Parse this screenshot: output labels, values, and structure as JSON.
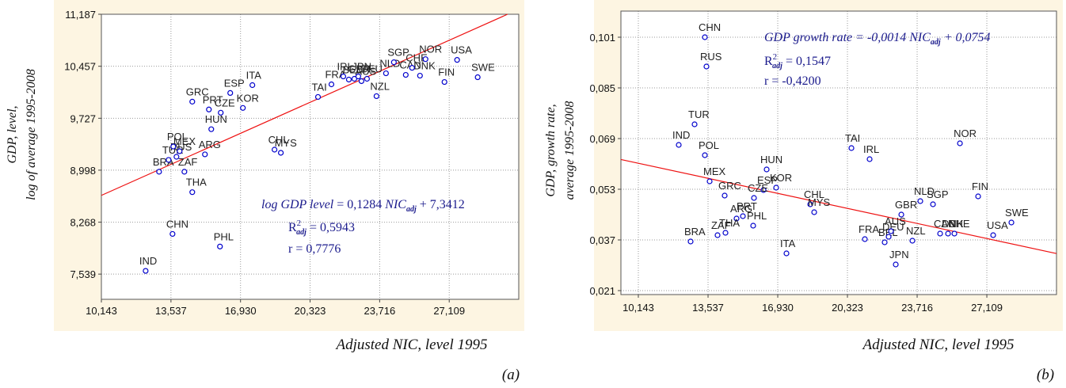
{
  "chart_data": [
    {
      "type": "scatter",
      "panel_label": "(a)",
      "x_label": "Adjusted NIC, level 1995",
      "y_label": [
        "GDP, level,",
        "log of average 1995-2008"
      ],
      "color": "#0000cc",
      "grid": true,
      "xlim": [
        10143,
        30500
      ],
      "ylim": [
        7.185,
        11.187
      ],
      "xticks": [
        {
          "value": 10143,
          "label": "10,143"
        },
        {
          "value": 13537,
          "label": "13,537"
        },
        {
          "value": 16930,
          "label": "16,930"
        },
        {
          "value": 20323,
          "label": "20,323"
        },
        {
          "value": 23716,
          "label": "23,716"
        },
        {
          "value": 27109,
          "label": "27,109"
        }
      ],
      "yticks": [
        {
          "value": 7.539,
          "label": "7,539"
        },
        {
          "value": 8.268,
          "label": "8,268"
        },
        {
          "value": 8.998,
          "label": "8,998"
        },
        {
          "value": 9.727,
          "label": "9,727"
        },
        {
          "value": 10.457,
          "label": "10,457"
        },
        {
          "value": 11.187,
          "label": "11,187"
        }
      ],
      "point_labels": [
        "IND",
        "CHN",
        "PHL",
        "BRA",
        "THA",
        "ZAF",
        "ARG",
        "TUR",
        "RUS",
        "MEX",
        "POL",
        "HUN",
        "GRC",
        "PRT",
        "CZE",
        "KOR",
        "ESP",
        "ITA",
        "CHL",
        "MYS",
        "TAI",
        "FRA",
        "IRL",
        "BEL",
        "GBR",
        "AUS",
        "JPN",
        "DEU",
        "NZL",
        "NLD",
        "CAN",
        "DNK",
        "CHE",
        "SGP",
        "NOR",
        "USA",
        "FIN",
        "SWE"
      ],
      "x": [
        12302,
        13613,
        15927,
        12958,
        14577,
        14192,
        15194,
        13421,
        13806,
        13960,
        13652,
        15503,
        14577,
        15387,
        15965,
        17045,
        16428,
        17508,
        18588,
        18896,
        20709,
        21364,
        21943,
        22213,
        22482,
        22829,
        22675,
        23099,
        23562,
        24025,
        24989,
        25683,
        25297,
        24410,
        25952,
        27494,
        26877,
        28497
      ],
      "y": [
        7.584,
        8.103,
        7.926,
        8.976,
        8.689,
        8.976,
        9.22,
        9.142,
        9.186,
        9.264,
        9.33,
        9.573,
        9.96,
        9.85,
        9.805,
        9.872,
        10.082,
        10.192,
        9.286,
        9.242,
        10.026,
        10.203,
        10.314,
        10.27,
        10.281,
        10.248,
        10.314,
        10.281,
        10.037,
        10.358,
        10.336,
        10.325,
        10.435,
        10.513,
        10.557,
        10.546,
        10.236,
        10.303
      ],
      "trend": {
        "color": "#ee1111",
        "x": [
          10143,
          29953
        ],
        "y": [
          8.644,
          11.187
        ]
      },
      "annotation": [
        [
          {
            "text": "log GDP level",
            "style": "italic"
          },
          {
            "text": " = 0,1284 ",
            "style": "plain"
          },
          {
            "text": "NIC",
            "style": "italic"
          },
          {
            "text": "adj",
            "style": "sub"
          },
          {
            "text": " + 7,3412",
            "style": "plain"
          }
        ],
        [
          {
            "text": "R",
            "style": "plain"
          },
          {
            "text": "2",
            "style": "sup"
          },
          {
            "text": "adj",
            "style": "sub"
          },
          {
            "text": " = 0,5943",
            "style": "plain"
          }
        ],
        [
          {
            "text": "r = 0,7776",
            "style": "plain"
          }
        ]
      ]
    },
    {
      "type": "scatter",
      "panel_label": "(b)",
      "x_label": "Adjusted NIC, level 1995",
      "y_label": [
        "GDP, growth rate,",
        "average 1995-2008"
      ],
      "color": "#0000cc",
      "grid": true,
      "xlim": [
        9295,
        30500
      ],
      "ylim": [
        0.01975,
        0.10925
      ],
      "xticks": [
        {
          "value": 10143,
          "label": "10,143"
        },
        {
          "value": 13537,
          "label": "13,537"
        },
        {
          "value": 16930,
          "label": "16,930"
        },
        {
          "value": 20323,
          "label": "20,323"
        },
        {
          "value": 23716,
          "label": "23,716"
        },
        {
          "value": 27109,
          "label": "27,109"
        }
      ],
      "yticks": [
        {
          "value": 0.021,
          "label": "0,021"
        },
        {
          "value": 0.037,
          "label": "0,037"
        },
        {
          "value": 0.053,
          "label": "0,053"
        },
        {
          "value": 0.069,
          "label": "0,069"
        },
        {
          "value": 0.085,
          "label": "0,085"
        },
        {
          "value": 0.101,
          "label": "0,101"
        }
      ],
      "point_labels": [
        "CHN",
        "RUS",
        "TUR",
        "IND",
        "POL",
        "TAI",
        "IRL",
        "NOR",
        "HUN",
        "MEX",
        "KOR",
        "ESP",
        "CZE",
        "GRC",
        "PRT",
        "ARG",
        "ZAF",
        "THA",
        "PHL",
        "BRA",
        "CHL",
        "MYS",
        "ITA",
        "FRA",
        "BEL",
        "DEU",
        "AUS",
        "NZL",
        "JPN",
        "GBR",
        "NLD",
        "SGP",
        "CAN",
        "DNK",
        "CHE",
        "USA",
        "SWE",
        "FIN"
      ],
      "x": [
        13382,
        13459,
        12881,
        12110,
        13382,
        20516,
        21402,
        25799,
        16390,
        13614,
        16852,
        16236,
        15773,
        14346,
        15233,
        14924,
        13999,
        14385,
        15734,
        12688,
        18511,
        18704,
        17354,
        21171,
        22135,
        22328,
        22444,
        23485,
        22675,
        22945,
        23870,
        24487,
        24834,
        25220,
        25529,
        27417,
        28304,
        26685
      ],
      "y": [
        0.101,
        0.09175,
        0.0735,
        0.067,
        0.06375,
        0.066,
        0.0625,
        0.0675,
        0.05925,
        0.0555,
        0.0535,
        0.05275,
        0.05025,
        0.051,
        0.0445,
        0.04375,
        0.0385,
        0.03925,
        0.0415,
        0.0365,
        0.04825,
        0.04575,
        0.03275,
        0.03725,
        0.03625,
        0.038,
        0.03975,
        0.03675,
        0.02925,
        0.045,
        0.04925,
        0.04825,
        0.039,
        0.039,
        0.039,
        0.0385,
        0.0425,
        0.05075
      ],
      "trend": {
        "color": "#ee1111",
        "x": [
          9295,
          30500
        ],
        "y": [
          0.0624,
          0.0327
        ]
      },
      "annotation": [
        [
          {
            "text": "GDP growth rate",
            "style": "italic"
          },
          {
            "text": " =  -0,0014 ",
            "style": "italic"
          },
          {
            "text": "NIC",
            "style": "italic"
          },
          {
            "text": "adj",
            "style": "sub"
          },
          {
            "text": " + 0,0754",
            "style": "italic"
          }
        ],
        [
          {
            "text": "R",
            "style": "plain"
          },
          {
            "text": "2",
            "style": "sup"
          },
          {
            "text": "adj",
            "style": "sub"
          },
          {
            "text": " = 0,1547",
            "style": "plain"
          }
        ],
        [
          {
            "text": "r = -0,4200",
            "style": "plain"
          }
        ]
      ]
    }
  ]
}
